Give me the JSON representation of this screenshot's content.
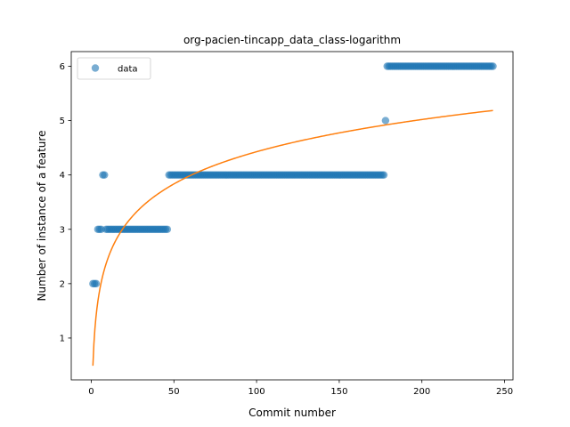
{
  "chart_data": {
    "type": "scatter",
    "title": "org-pacien-tincapp_data_class-logarithm",
    "xlabel": "Commit number",
    "ylabel": "Number of instance of a feature",
    "xlim": [
      -12.1,
      255.1
    ],
    "ylim": [
      0.23,
      6.27
    ],
    "xticks": [
      0,
      50,
      100,
      150,
      200,
      250
    ],
    "yticks": [
      1,
      2,
      3,
      4,
      5,
      6
    ],
    "grid": false,
    "legend_position": "top-left",
    "series": [
      {
        "name": "data",
        "kind": "points",
        "color": "#1f77b4",
        "segments": [
          {
            "x_start": 1,
            "x_end": 3,
            "y": 2
          },
          {
            "x_start": 4,
            "x_end": 6,
            "y": 3
          },
          {
            "x_start": 7,
            "x_end": 8,
            "y": 4
          },
          {
            "x_start": 9,
            "x_end": 46,
            "y": 3
          },
          {
            "x_start": 47,
            "x_end": 177,
            "y": 4
          },
          {
            "x_start": 178,
            "x_end": 178,
            "y": 5
          },
          {
            "x_start": 179,
            "x_end": 243,
            "y": 6
          }
        ]
      },
      {
        "kind": "fit-line",
        "color": "#ff7f0e",
        "model": "logarithmic",
        "formula": "y = a + b*ln(x)",
        "a": 0.49,
        "b": 0.855,
        "x_range": [
          1,
          243
        ]
      }
    ]
  }
}
